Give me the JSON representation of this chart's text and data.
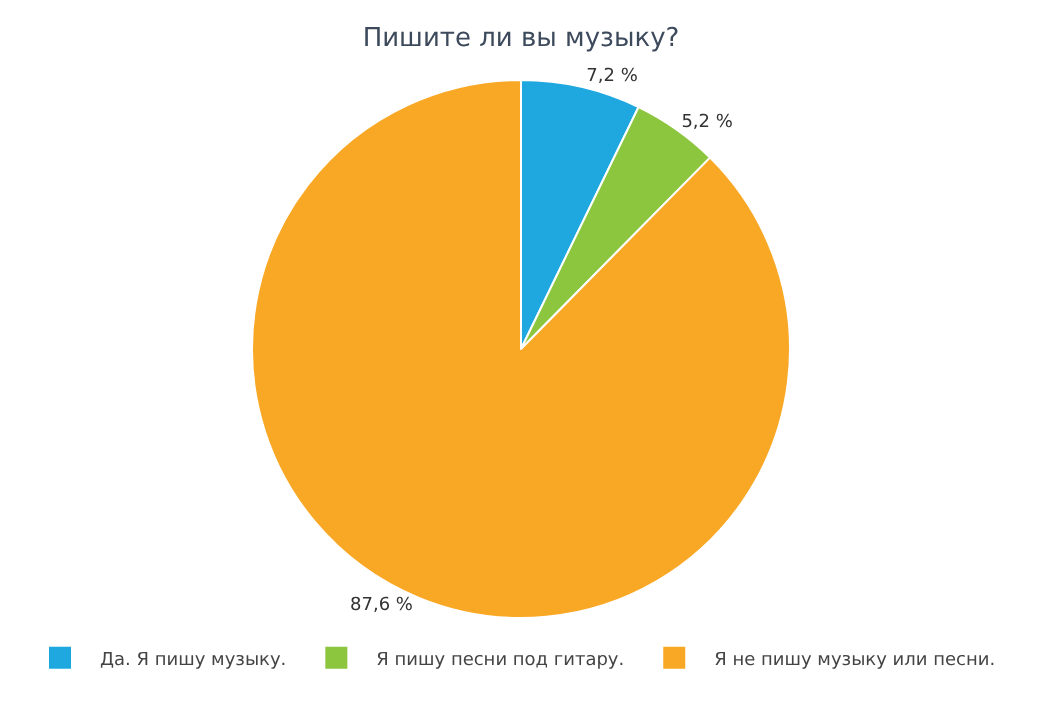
{
  "chart_data": {
    "type": "pie",
    "title": "Пишите ли вы музыку?",
    "categories": [
      "Да. Я пишу музыку.",
      "Я пишу песни под гитару.",
      "Я не пишу музыку или песни."
    ],
    "values": [
      7.2,
      5.2,
      87.6
    ],
    "colors": [
      "#1fa8e0",
      "#8cc63f",
      "#f9a825"
    ],
    "value_labels": [
      "7,2 %",
      "5,2 %",
      "87,6 %"
    ],
    "legend": "bottom left"
  }
}
